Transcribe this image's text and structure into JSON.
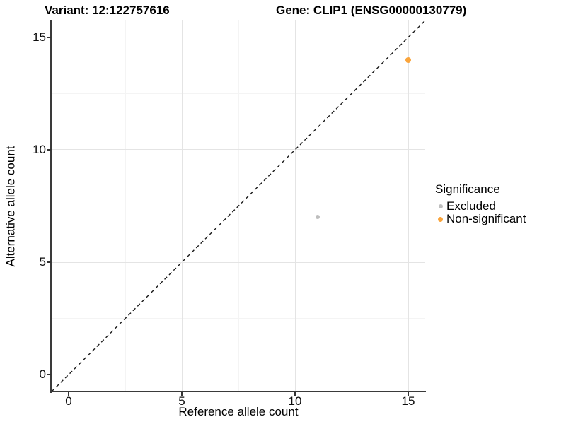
{
  "titles": {
    "variant": "Variant: 12:122757616",
    "gene": "Gene: CLIP1 (ENSG00000130779)"
  },
  "chart_data": {
    "type": "scatter",
    "xlabel": "Reference allele count",
    "ylabel": "Alternative allele count",
    "xlim": [
      -0.75,
      15.75
    ],
    "ylim": [
      -0.75,
      15.75
    ],
    "x_ticks": [
      0,
      5,
      10,
      15
    ],
    "y_ticks": [
      0,
      5,
      10,
      15
    ],
    "x_minor_ticks": [
      2.5,
      7.5,
      12.5
    ],
    "y_minor_ticks": [
      2.5,
      7.5,
      12.5
    ],
    "grid": "major and minor, light gray on white",
    "identity_line": {
      "equation": "y = x",
      "style": "dashed",
      "color": "#1a1a1a"
    },
    "legend": {
      "title": "Significance",
      "position": "right"
    },
    "series": [
      {
        "name": "Excluded",
        "color": "#bebebe",
        "point_size": 6,
        "key_size": 6,
        "points": [
          {
            "x": 11,
            "y": 7
          }
        ]
      },
      {
        "name": "Non-significant",
        "color": "#faa43b",
        "point_size": 8,
        "key_size": 7,
        "points": [
          {
            "x": 15,
            "y": 14
          }
        ]
      }
    ]
  }
}
